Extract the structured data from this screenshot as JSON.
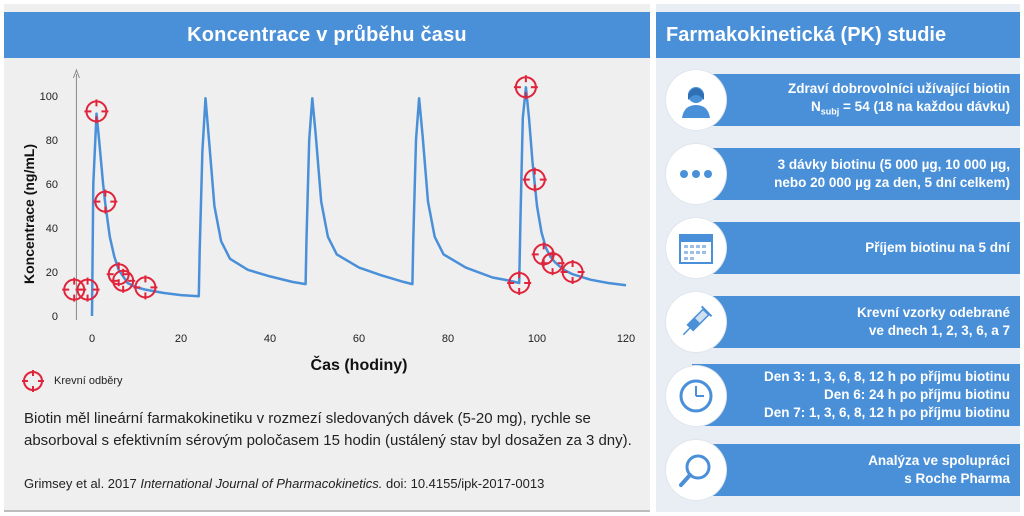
{
  "left": {
    "title": "Koncentrace v průběhu času",
    "legend_label": "Krevní odběry",
    "description": "Biotin měl lineární farmakokinetiku v rozmezí sledovaných dávek (5-20 mg), rychle se absorboval s efektivním sérovým poločasem 15 hodin (ustálený stav byl dosažen za 3 dny).",
    "citation_prefix": "Grimsey et al. 2017 ",
    "citation_journal": "International Journal of Pharmacokinetics.",
    "citation_suffix": " doi: 10.4155/ipk-2017-0013"
  },
  "chart_data": {
    "type": "line",
    "title": "Koncentrace v průběhu času",
    "xlabel": "Čas (hodiny)",
    "ylabel": "Koncentrace (ng/mL)",
    "xlim": [
      -5,
      120
    ],
    "ylim": [
      0,
      105
    ],
    "xticks": [
      0,
      20,
      40,
      60,
      80,
      100,
      120
    ],
    "yticks": [
      0,
      20,
      40,
      60,
      80,
      100
    ],
    "line_color": "#4a90d9",
    "marker_color": "#e0243c",
    "series": [
      {
        "values": [
          [
            0,
            0
          ],
          [
            0.3,
            60
          ],
          [
            1,
            92
          ],
          [
            1.6,
            80
          ],
          [
            2.5,
            60
          ],
          [
            3,
            51
          ],
          [
            4,
            36
          ],
          [
            5,
            27
          ],
          [
            6,
            21
          ],
          [
            7,
            18
          ],
          [
            8,
            15
          ],
          [
            10,
            13
          ],
          [
            12,
            12
          ],
          [
            16,
            10.5
          ],
          [
            20,
            9.5
          ],
          [
            24,
            9
          ],
          [
            24.2,
            30
          ],
          [
            24.8,
            75
          ],
          [
            25.5,
            99
          ],
          [
            26.3,
            80
          ],
          [
            27.5,
            50
          ],
          [
            29,
            34
          ],
          [
            31,
            26
          ],
          [
            35,
            21
          ],
          [
            40,
            18
          ],
          [
            45,
            15.5
          ],
          [
            48,
            14.5
          ],
          [
            48.2,
            35
          ],
          [
            48.8,
            80
          ],
          [
            49.5,
            99
          ],
          [
            50.3,
            82
          ],
          [
            51.5,
            52
          ],
          [
            53,
            36
          ],
          [
            55,
            28
          ],
          [
            60,
            22
          ],
          [
            65,
            18.5
          ],
          [
            70,
            15.5
          ],
          [
            72,
            14.5
          ],
          [
            72.2,
            35
          ],
          [
            72.8,
            80
          ],
          [
            73.5,
            99
          ],
          [
            74.3,
            82
          ],
          [
            75.5,
            52
          ],
          [
            77,
            36
          ],
          [
            79,
            28
          ],
          [
            84,
            22
          ],
          [
            90,
            17.5
          ],
          [
            94,
            16
          ],
          [
            96,
            15
          ],
          [
            96.3,
            45
          ],
          [
            96.8,
            90
          ],
          [
            97.5,
            104
          ],
          [
            98.2,
            90
          ],
          [
            99,
            70
          ],
          [
            100,
            50
          ],
          [
            101,
            38
          ],
          [
            102,
            31
          ],
          [
            103,
            27
          ],
          [
            104,
            24.5
          ],
          [
            106,
            21
          ],
          [
            108,
            19
          ],
          [
            112,
            16.5
          ],
          [
            116,
            15
          ],
          [
            120,
            14
          ]
        ]
      }
    ],
    "sampling_points": [
      [
        -4,
        12
      ],
      [
        -1,
        12
      ],
      [
        1,
        93
      ],
      [
        3,
        52
      ],
      [
        6,
        19
      ],
      [
        7,
        16
      ],
      [
        12,
        13
      ],
      [
        97.5,
        104
      ],
      [
        99.5,
        62
      ],
      [
        101.5,
        28
      ],
      [
        103.5,
        24
      ],
      [
        108,
        20
      ],
      [
        96,
        15
      ]
    ]
  },
  "right": {
    "title": "Farmakokinetická (PK) studie",
    "items": [
      {
        "icon": "person-icon",
        "lines": [
          "Zdraví dobrovolníci užívající biotin"
        ],
        "subj_prefix": "N",
        "subj_sub": "subj",
        "subj_suffix": " = 54 (18 na každou dávku)"
      },
      {
        "icon": "dots-icon",
        "lines": [
          "3 dávky biotinu (5 000  µg, 10 000 µg,",
          "nebo 20 000 µg za den, 5 dní celkem)"
        ]
      },
      {
        "icon": "calendar-icon",
        "lines": [
          "Příjem biotinu na 5 dní"
        ]
      },
      {
        "icon": "syringe-icon",
        "lines": [
          "Krevní vzorky odebrané",
          "ve dnech 1, 2, 3, 6, a 7"
        ]
      },
      {
        "icon": "clock-icon",
        "lines": [
          "Den 3: 1, 3, 6, 8, 12 h po příjmu biotinu",
          "Den 6: 24 h  po příjmu biotinu",
          "Den 7: 1, 3, 6, 8, 12 h po příjmu biotinu"
        ]
      },
      {
        "icon": "magnifier-icon",
        "lines": [
          "Analýza ve spolupráci",
          "s Roche Pharma"
        ]
      }
    ]
  }
}
